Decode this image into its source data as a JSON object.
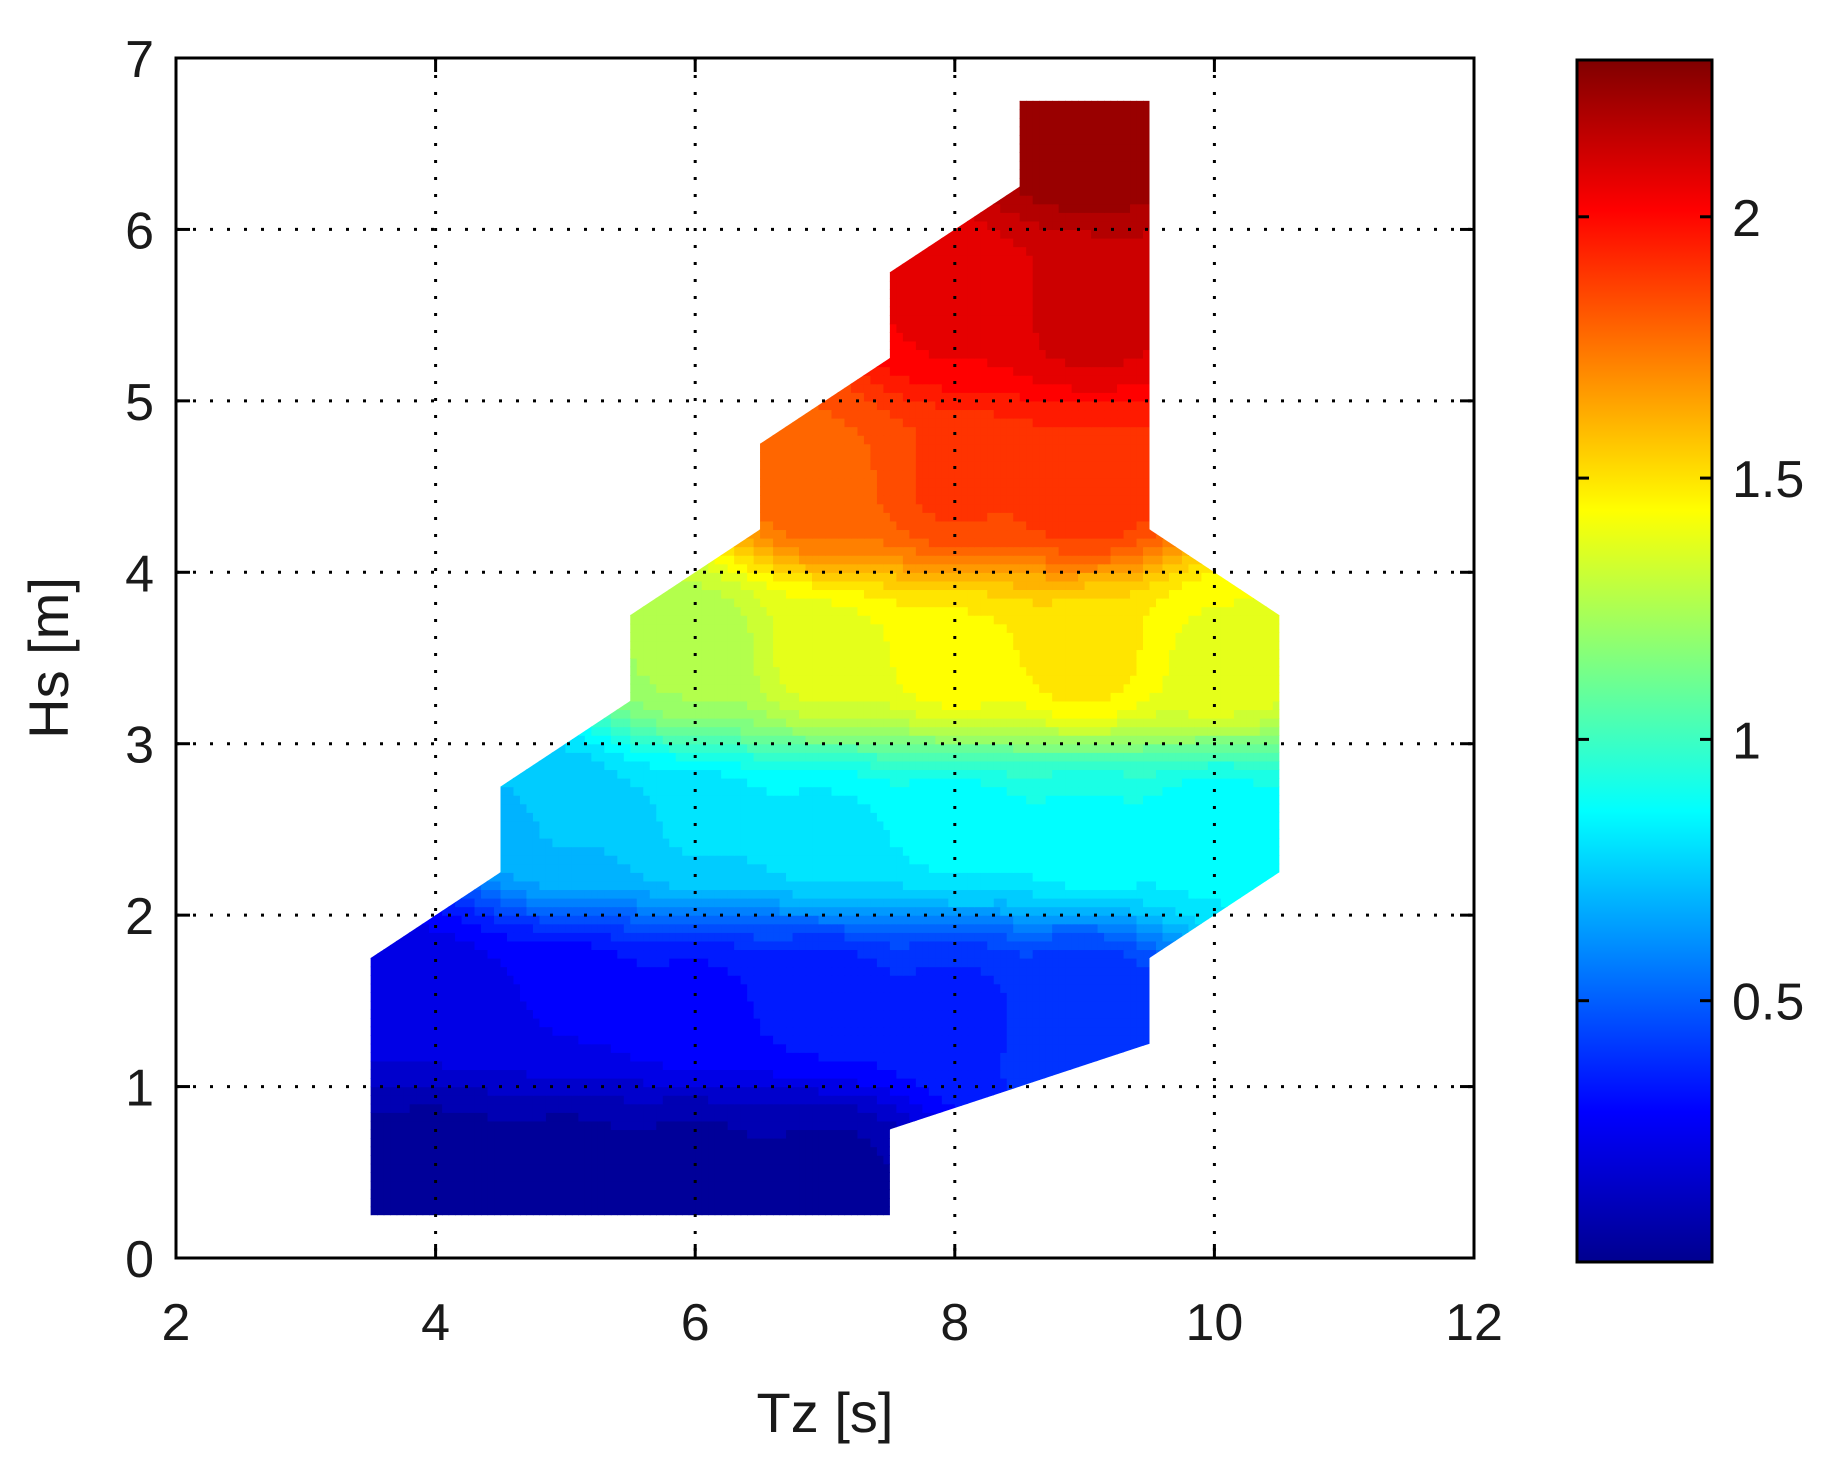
{
  "chart_data": {
    "type": "heatmap",
    "title": "",
    "xlabel": "Tz [s]",
    "ylabel": "Hs [m]",
    "xlim": [
      2,
      12
    ],
    "ylim": [
      0,
      7
    ],
    "x_ticks": [
      "2",
      "4",
      "6",
      "8",
      "10",
      "12"
    ],
    "y_ticks": [
      "0",
      "1",
      "2",
      "3",
      "4",
      "5",
      "6",
      "7"
    ],
    "grid": true,
    "grid_style": "dotted",
    "colormap": "jet",
    "colorbar": {
      "range": [
        0,
        2.3
      ],
      "ticks": [
        "0.5",
        "1",
        "1.5",
        "2"
      ],
      "position": "right"
    },
    "x": [
      4,
      5,
      6,
      7,
      8,
      9,
      10
    ],
    "y": [
      0.5,
      1.5,
      2.5,
      3.5,
      4.5,
      5.5,
      6.5
    ],
    "values": [
      [
        0.05,
        0.06,
        0.06,
        0.07,
        null,
        null,
        null
      ],
      [
        0.22,
        0.26,
        0.3,
        0.33,
        0.36,
        0.38,
        null
      ],
      [
        null,
        0.72,
        0.78,
        0.82,
        0.85,
        0.88,
        0.85
      ],
      [
        null,
        null,
        1.25,
        1.38,
        1.45,
        1.5,
        1.4
      ],
      [
        null,
        null,
        null,
        1.8,
        1.88,
        1.92,
        null
      ],
      [
        null,
        null,
        null,
        null,
        2.05,
        2.12,
        null
      ],
      [
        null,
        null,
        null,
        null,
        null,
        2.25,
        null
      ]
    ]
  }
}
